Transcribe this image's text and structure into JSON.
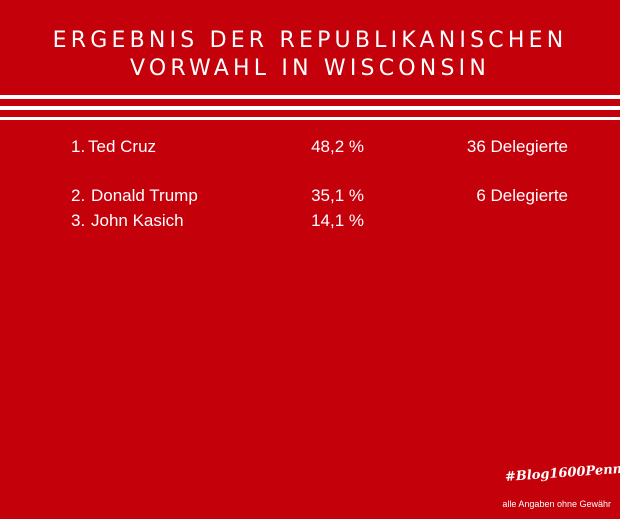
{
  "title": {
    "line1": "ERGEBNIS DER REPUBLIKANISCHEN",
    "line2": "VORWAHL IN WISCONSIN"
  },
  "results": [
    {
      "rank": "1.",
      "name": "Ted Cruz",
      "percent": "48,2 %",
      "delegates": "36 Delegierte"
    },
    {
      "rank": "2.",
      "name": "Donald Trump",
      "percent": "35,1 %",
      "delegates": "6 Delegierte"
    },
    {
      "rank": "3.",
      "name": "John Kasich",
      "percent": "14,1 %",
      "delegates": ""
    }
  ],
  "footer": {
    "hashtag": "#Blog1600Penn",
    "disclaimer": "alle Angaben ohne Gewähr"
  },
  "colors": {
    "background": "#c4000b",
    "text": "#ffffff"
  }
}
